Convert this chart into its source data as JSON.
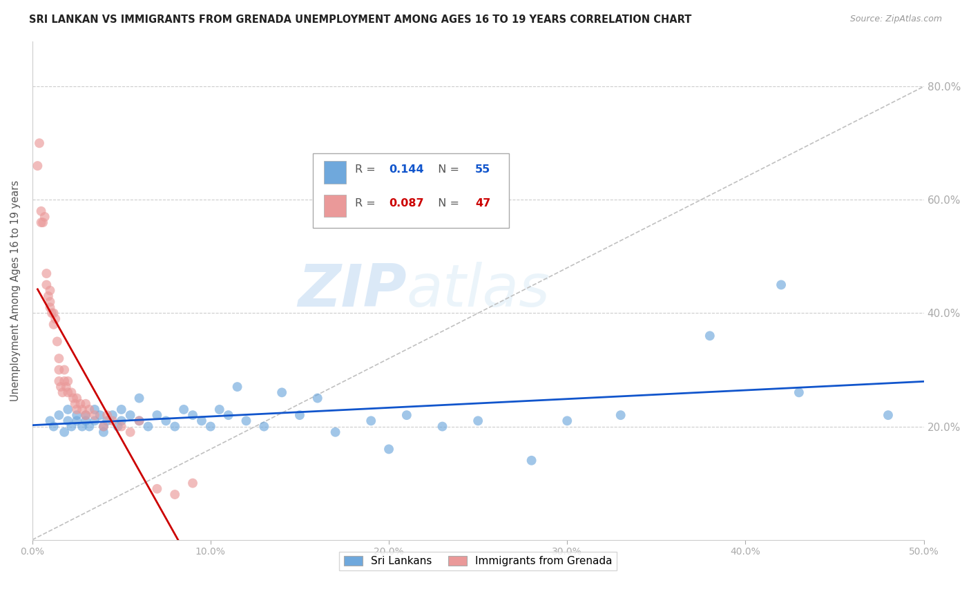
{
  "title": "SRI LANKAN VS IMMIGRANTS FROM GRENADA UNEMPLOYMENT AMONG AGES 16 TO 19 YEARS CORRELATION CHART",
  "source": "Source: ZipAtlas.com",
  "ylabel": "Unemployment Among Ages 16 to 19 years",
  "xlim": [
    0.0,
    0.5
  ],
  "ylim": [
    0.0,
    0.88
  ],
  "xticks": [
    0.0,
    0.1,
    0.2,
    0.3,
    0.4,
    0.5
  ],
  "xtick_labels": [
    "0.0%",
    "10.0%",
    "20.0%",
    "30.0%",
    "40.0%",
    "50.0%"
  ],
  "ytick_positions": [
    0.2,
    0.4,
    0.6,
    0.8
  ],
  "ytick_labels": [
    "20.0%",
    "40.0%",
    "60.0%",
    "80.0%"
  ],
  "blue_color": "#6fa8dc",
  "pink_color": "#ea9999",
  "blue_line_color": "#1155cc",
  "pink_line_color": "#cc0000",
  "diag_line_color": "#c0c0c0",
  "R_blue": 0.144,
  "N_blue": 55,
  "R_pink": 0.087,
  "N_pink": 47,
  "watermark_line1": "ZIP",
  "watermark_line2": "atlas",
  "blue_scatter_x": [
    0.01,
    0.012,
    0.015,
    0.018,
    0.02,
    0.02,
    0.022,
    0.025,
    0.025,
    0.028,
    0.03,
    0.03,
    0.032,
    0.035,
    0.035,
    0.038,
    0.04,
    0.04,
    0.042,
    0.045,
    0.048,
    0.05,
    0.05,
    0.055,
    0.06,
    0.06,
    0.065,
    0.07,
    0.075,
    0.08,
    0.085,
    0.09,
    0.095,
    0.1,
    0.105,
    0.11,
    0.115,
    0.12,
    0.13,
    0.14,
    0.15,
    0.16,
    0.17,
    0.19,
    0.2,
    0.21,
    0.23,
    0.25,
    0.28,
    0.3,
    0.33,
    0.38,
    0.42,
    0.43,
    0.48
  ],
  "blue_scatter_y": [
    0.21,
    0.2,
    0.22,
    0.19,
    0.21,
    0.23,
    0.2,
    0.22,
    0.21,
    0.2,
    0.22,
    0.21,
    0.2,
    0.23,
    0.21,
    0.22,
    0.2,
    0.19,
    0.21,
    0.22,
    0.2,
    0.21,
    0.23,
    0.22,
    0.21,
    0.25,
    0.2,
    0.22,
    0.21,
    0.2,
    0.23,
    0.22,
    0.21,
    0.2,
    0.23,
    0.22,
    0.27,
    0.21,
    0.2,
    0.26,
    0.22,
    0.25,
    0.19,
    0.21,
    0.16,
    0.22,
    0.2,
    0.21,
    0.14,
    0.21,
    0.22,
    0.36,
    0.45,
    0.26,
    0.22
  ],
  "pink_scatter_x": [
    0.003,
    0.004,
    0.005,
    0.005,
    0.006,
    0.007,
    0.008,
    0.008,
    0.009,
    0.01,
    0.01,
    0.01,
    0.011,
    0.012,
    0.012,
    0.013,
    0.014,
    0.015,
    0.015,
    0.015,
    0.016,
    0.017,
    0.018,
    0.018,
    0.019,
    0.02,
    0.02,
    0.022,
    0.023,
    0.024,
    0.025,
    0.025,
    0.027,
    0.028,
    0.03,
    0.03,
    0.032,
    0.035,
    0.04,
    0.042,
    0.045,
    0.05,
    0.055,
    0.06,
    0.07,
    0.08,
    0.09
  ],
  "pink_scatter_y": [
    0.66,
    0.7,
    0.56,
    0.58,
    0.56,
    0.57,
    0.45,
    0.47,
    0.43,
    0.41,
    0.42,
    0.44,
    0.4,
    0.38,
    0.4,
    0.39,
    0.35,
    0.28,
    0.3,
    0.32,
    0.27,
    0.26,
    0.28,
    0.3,
    0.27,
    0.26,
    0.28,
    0.26,
    0.25,
    0.24,
    0.23,
    0.25,
    0.24,
    0.23,
    0.22,
    0.24,
    0.23,
    0.22,
    0.2,
    0.22,
    0.21,
    0.2,
    0.19,
    0.21,
    0.09,
    0.08,
    0.1
  ]
}
